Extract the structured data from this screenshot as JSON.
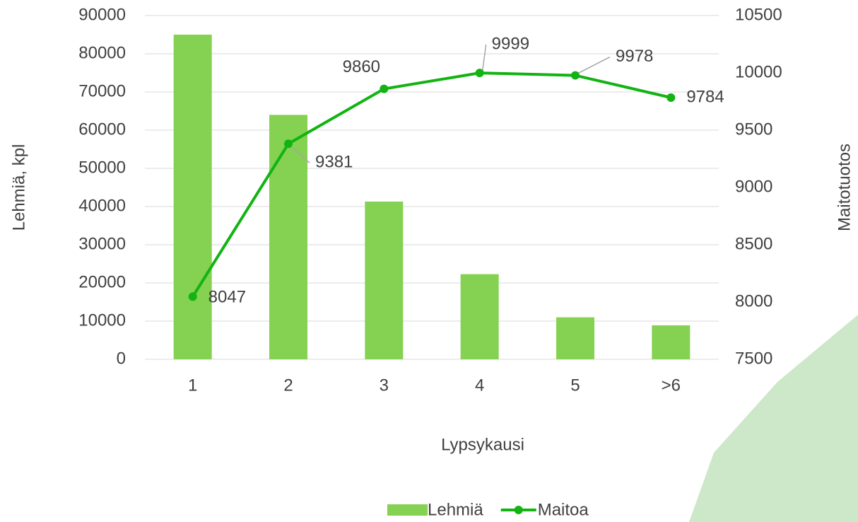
{
  "chart_data": {
    "type": "bar-line",
    "categories": [
      "1",
      "2",
      "3",
      "4",
      "5",
      ">6"
    ],
    "series": [
      {
        "name": "Lehmiä",
        "type": "bar",
        "color": "#85d152",
        "values": [
          85000,
          64000,
          41300,
          22300,
          11000,
          8900
        ]
      },
      {
        "name": "Maitoa",
        "type": "line",
        "axis": "y2",
        "color": "#12b312",
        "values": [
          8047,
          9381,
          9860,
          9999,
          9978,
          9784
        ]
      }
    ],
    "ylabel": "Lehmiä, kpl",
    "y2label": "Maitotuotos",
    "xlabel": "Lypsykausi",
    "ylim": [
      0,
      90000
    ],
    "yticks": [
      0,
      10000,
      20000,
      30000,
      40000,
      50000,
      60000,
      70000,
      80000,
      90000
    ],
    "y2lim": [
      7500,
      10500
    ],
    "y2ticks": [
      7500,
      8000,
      8500,
      9000,
      9500,
      10000,
      10500
    ],
    "grid": true,
    "legend": "bottom"
  }
}
